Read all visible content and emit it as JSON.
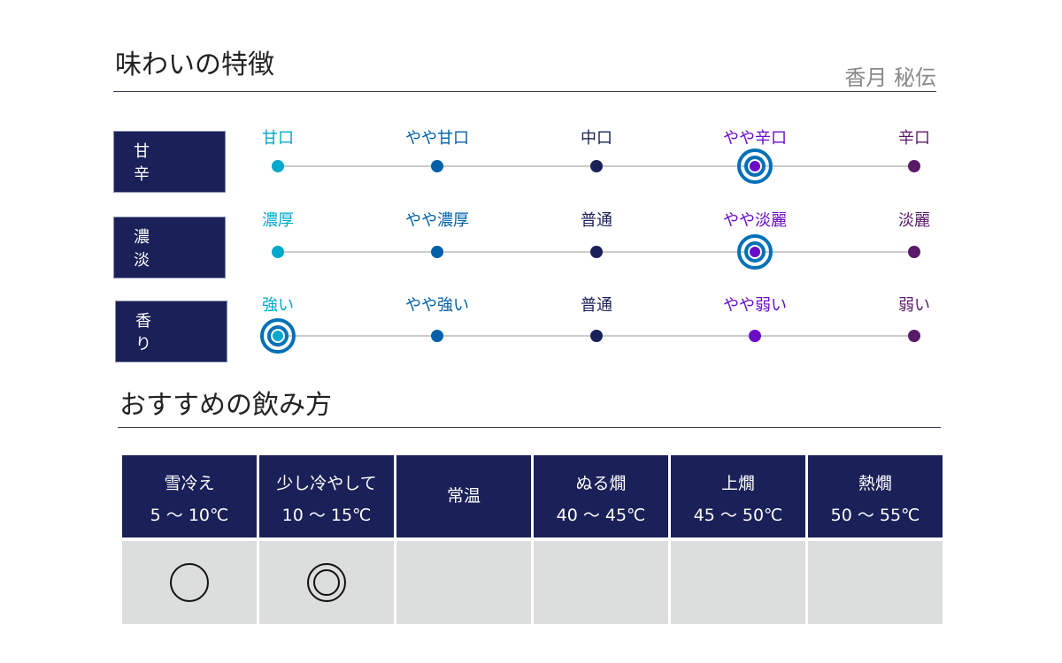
{
  "header": {
    "title": "味わいの特徴",
    "brand": "香月 秘伝"
  },
  "colors": {
    "levels": [
      "#00a8cc",
      "#0060a8",
      "#1a2058",
      "#6a0dc8",
      "#5a1a6a"
    ],
    "selected_ring": "#0070b8",
    "label_bg": "#1a2058"
  },
  "taste_rows": [
    {
      "label": "甘 辛",
      "levels": [
        "甘口",
        "やや甘口",
        "中口",
        "やや辛口",
        "辛口"
      ],
      "selected_index": 3
    },
    {
      "label": "濃 淡",
      "levels": [
        "濃厚",
        "やや濃厚",
        "普通",
        "やや淡麗",
        "淡麗"
      ],
      "selected_index": 3
    },
    {
      "label": "香 り",
      "levels": [
        "強い",
        "やや強い",
        "普通",
        "やや弱い",
        "弱い"
      ],
      "selected_index": 0
    }
  ],
  "serving": {
    "title": "おすすめの飲み方",
    "columns": [
      {
        "name": "雪冷え",
        "temp": "5 ～ 10℃",
        "rating": "circle"
      },
      {
        "name": "少し冷やして",
        "temp": "10 ～ 15℃",
        "rating": "double-circle"
      },
      {
        "name": "常温",
        "temp": "",
        "rating": ""
      },
      {
        "name": "ぬる燗",
        "temp": "40 ～ 45℃",
        "rating": ""
      },
      {
        "name": "上燗",
        "temp": "45 ～ 50℃",
        "rating": ""
      },
      {
        "name": "熱燗",
        "temp": "50 ～ 55℃",
        "rating": ""
      }
    ]
  }
}
